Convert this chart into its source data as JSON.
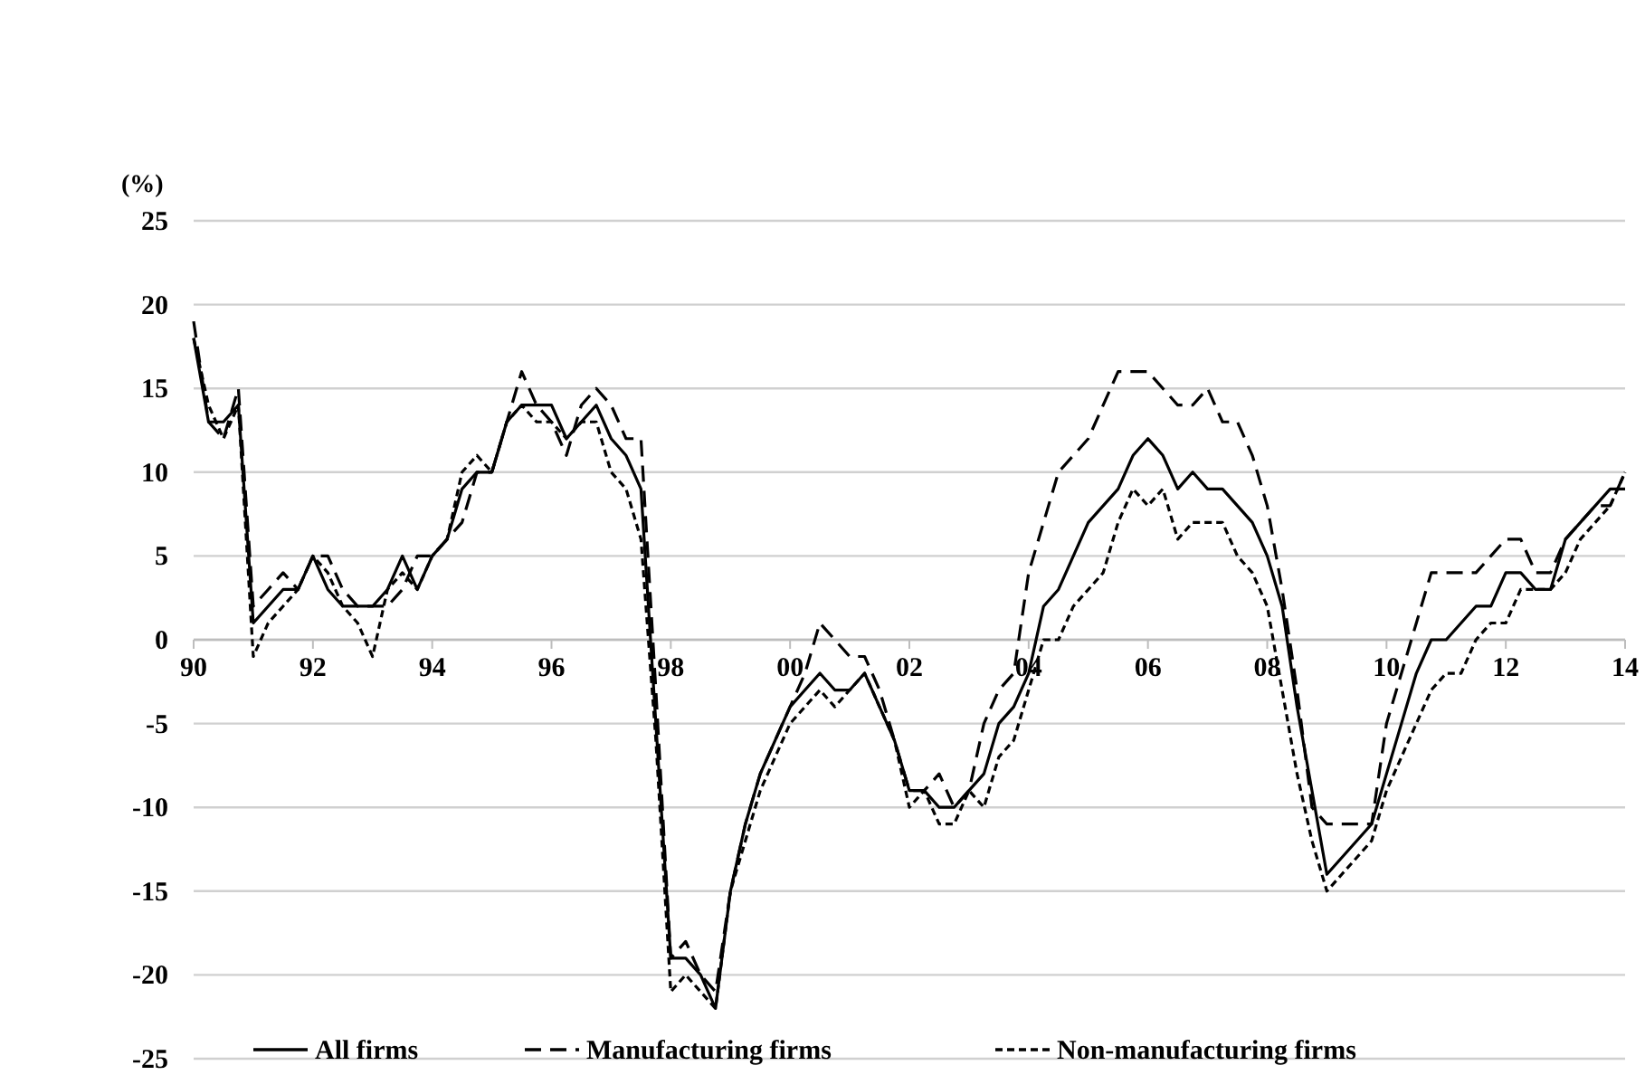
{
  "chart_data": {
    "type": "line",
    "ylabel": "(%)",
    "x": [
      1990,
      1990.25,
      1990.5,
      1990.75,
      1991,
      1991.25,
      1991.5,
      1991.75,
      1992,
      1992.25,
      1992.5,
      1992.75,
      1993,
      1993.25,
      1993.5,
      1993.75,
      1994,
      1994.25,
      1994.5,
      1994.75,
      1995,
      1995.25,
      1995.5,
      1995.75,
      1996,
      1996.25,
      1996.5,
      1996.75,
      1997,
      1997.25,
      1997.5,
      1997.75,
      1998,
      1998.25,
      1998.5,
      1998.75,
      1999,
      1999.25,
      1999.5,
      1999.75,
      2000,
      2000.25,
      2000.5,
      2000.75,
      2001,
      2001.25,
      2001.5,
      2001.75,
      2002,
      2002.25,
      2002.5,
      2002.75,
      2003,
      2003.25,
      2003.5,
      2003.75,
      2004,
      2004.25,
      2004.5,
      2004.75,
      2005,
      2005.25,
      2005.5,
      2005.75,
      2006,
      2006.25,
      2006.5,
      2006.75,
      2007,
      2007.25,
      2007.5,
      2007.75,
      2008,
      2008.25,
      2008.5,
      2008.75,
      2009,
      2009.25,
      2009.5,
      2009.75,
      2010,
      2010.25,
      2010.5,
      2010.75,
      2011,
      2011.25,
      2011.5,
      2011.75,
      2012,
      2012.25,
      2012.5,
      2012.75,
      2013,
      2013.25,
      2013.5,
      2013.75,
      2014
    ],
    "series": [
      {
        "name": "All firms",
        "color": "#000000",
        "line_style": "solid",
        "values": [
          18,
          13,
          13,
          14,
          1,
          2,
          3,
          3,
          5,
          3,
          2,
          2,
          2,
          3,
          5,
          3,
          5,
          6,
          9,
          10,
          10,
          13,
          14,
          14,
          14,
          12,
          13,
          14,
          12,
          11,
          9,
          -5,
          -19,
          -19,
          -20,
          -22,
          -15,
          -11,
          -8,
          -6,
          -4,
          -3,
          -2,
          -3,
          -3,
          -2,
          -4,
          -6,
          -9,
          -9,
          -10,
          -10,
          -9,
          -8,
          -5,
          -4,
          -2,
          2,
          3,
          5,
          7,
          8,
          9,
          11,
          12,
          11,
          9,
          10,
          9,
          9,
          8,
          7,
          5,
          2,
          -4,
          -9,
          -14,
          -13,
          -12,
          -11,
          -8,
          -5,
          -2,
          0,
          0,
          1,
          2,
          2,
          4,
          4,
          3,
          3,
          6,
          7,
          8,
          9,
          9
        ]
      },
      {
        "name": "Manufacturing firms",
        "color": "#000000",
        "line_style": "dashed",
        "values": [
          19,
          13,
          12,
          15,
          2,
          3,
          4,
          3,
          5,
          5,
          3,
          2,
          2,
          2,
          3,
          5,
          5,
          6,
          7,
          10,
          10,
          13,
          16,
          14,
          13,
          11,
          14,
          15,
          14,
          12,
          12,
          -3,
          -19,
          -18,
          -20,
          -21,
          -15,
          -11,
          -8,
          -6,
          -4,
          -2,
          1,
          0,
          -1,
          -1,
          -3,
          -6,
          -9,
          -9,
          -8,
          -10,
          -9,
          -5,
          -3,
          -2,
          4,
          7,
          10,
          11,
          12,
          14,
          16,
          16,
          16,
          15,
          14,
          14,
          15,
          13,
          13,
          11,
          8,
          3,
          -3,
          -10,
          -11,
          -11,
          -11,
          -11,
          -5,
          -2,
          1,
          4,
          4,
          4,
          4,
          5,
          6,
          6,
          4,
          4,
          6,
          7,
          8,
          8,
          10
        ]
      },
      {
        "name": "Non-manufacturing firms",
        "color": "#000000",
        "line_style": "dotted",
        "values": [
          18,
          14,
          12,
          14,
          -1,
          1,
          2,
          3,
          5,
          4,
          2,
          1,
          -1,
          3,
          4,
          3,
          5,
          6,
          10,
          11,
          10,
          13,
          14,
          13,
          13,
          12,
          13,
          13,
          10,
          9,
          6,
          -6,
          -21,
          -20,
          -21,
          -22,
          -15,
          -12,
          -9,
          -7,
          -5,
          -4,
          -3,
          -4,
          -3,
          -2,
          -4,
          -6,
          -10,
          -9,
          -11,
          -11,
          -9,
          -10,
          -7,
          -6,
          -3,
          0,
          0,
          2,
          3,
          4,
          7,
          9,
          8,
          9,
          6,
          7,
          7,
          7,
          5,
          4,
          2,
          -3,
          -8,
          -12,
          -15,
          -14,
          -13,
          -12,
          -9,
          -7,
          -5,
          -3,
          -2,
          -2,
          0,
          1,
          1,
          3,
          3,
          3,
          4,
          6,
          7,
          8,
          10
        ]
      }
    ],
    "xlim": [
      1990,
      2014
    ],
    "xticks": [
      {
        "value": 1990,
        "label": "90"
      },
      {
        "value": 1992,
        "label": "92"
      },
      {
        "value": 1994,
        "label": "94"
      },
      {
        "value": 1996,
        "label": "96"
      },
      {
        "value": 1998,
        "label": "98"
      },
      {
        "value": 2000,
        "label": "00"
      },
      {
        "value": 2002,
        "label": "02"
      },
      {
        "value": 2004,
        "label": "04"
      },
      {
        "value": 2006,
        "label": "06"
      },
      {
        "value": 2008,
        "label": "08"
      },
      {
        "value": 2010,
        "label": "10"
      },
      {
        "value": 2012,
        "label": "12"
      },
      {
        "value": 2014,
        "label": "14"
      }
    ],
    "ylim": [
      -25,
      25
    ],
    "yticks": [
      -25,
      -20,
      -15,
      -10,
      -5,
      0,
      5,
      10,
      15,
      20,
      25
    ],
    "grid": "y",
    "legend": "bottom"
  }
}
